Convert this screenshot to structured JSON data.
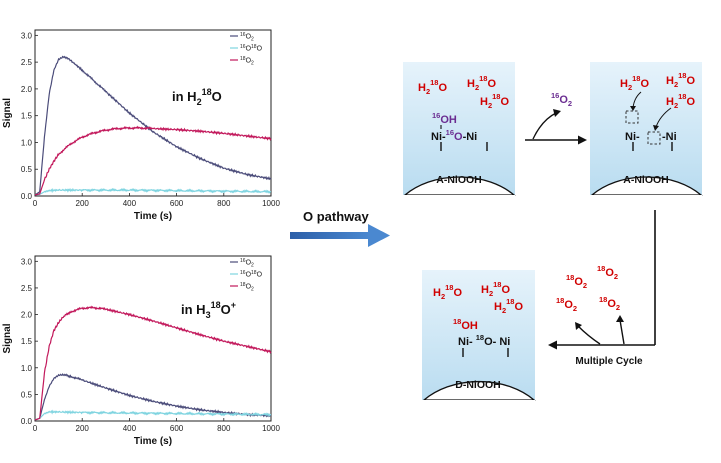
{
  "chart_data": [
    {
      "type": "line",
      "condition": {
        "prefix": "in H",
        "sub": "2",
        "sup": "18",
        "suffix": "O"
      },
      "xlabel": "Time (s)",
      "ylabel": "Signal",
      "xlim": [
        0,
        1000
      ],
      "ylim": [
        0,
        3.1
      ],
      "xticks": [
        0,
        200,
        400,
        600,
        800,
        1000
      ],
      "yticks": [
        0.0,
        0.5,
        1.0,
        1.5,
        2.0,
        2.5,
        3.0
      ],
      "ytick_labels": [
        "0.0",
        "0.5",
        "1.0",
        "1.5",
        "2.0",
        "2.5",
        "3.0"
      ],
      "series": [
        {
          "name": "16O2",
          "sup1": "16",
          "base": "O",
          "sub": "2",
          "color": "#4b4c7a",
          "x": [
            0,
            20,
            40,
            60,
            80,
            100,
            120,
            140,
            160,
            200,
            250,
            300,
            400,
            500,
            600,
            700,
            800,
            900,
            1000
          ],
          "y": [
            0.02,
            0.08,
            1.1,
            1.9,
            2.35,
            2.55,
            2.6,
            2.57,
            2.5,
            2.35,
            2.15,
            1.95,
            1.55,
            1.2,
            0.92,
            0.7,
            0.52,
            0.4,
            0.32
          ]
        },
        {
          "name": "16O18O",
          "sup1": "16",
          "base": "O",
          "sup2": "18",
          "base2": "O",
          "color": "#7fd4e0",
          "x": [
            0,
            20,
            40,
            60,
            100,
            200,
            400,
            600,
            800,
            1000
          ],
          "y": [
            0.02,
            0.03,
            0.08,
            0.1,
            0.11,
            0.11,
            0.11,
            0.1,
            0.09,
            0.08
          ]
        },
        {
          "name": "18O2",
          "sup1": "18",
          "base": "O",
          "sub": "2",
          "color": "#c2185b",
          "x": [
            0,
            20,
            40,
            60,
            80,
            100,
            150,
            200,
            250,
            300,
            350,
            400,
            450,
            500,
            600,
            700,
            800,
            900,
            1000
          ],
          "y": [
            0.02,
            0.04,
            0.3,
            0.5,
            0.65,
            0.78,
            0.97,
            1.1,
            1.18,
            1.23,
            1.26,
            1.27,
            1.27,
            1.26,
            1.24,
            1.21,
            1.17,
            1.12,
            1.07
          ]
        }
      ]
    },
    {
      "type": "line",
      "condition": {
        "prefix": "in H",
        "sub": "3",
        "sup": "18",
        "suffix": "O",
        "sup2": "+"
      },
      "xlabel": "Time (s)",
      "ylabel": "Signal",
      "xlim": [
        0,
        1000
      ],
      "ylim": [
        0,
        3.1
      ],
      "xticks": [
        0,
        200,
        400,
        600,
        800,
        1000
      ],
      "yticks": [
        0.0,
        0.5,
        1.0,
        1.5,
        2.0,
        2.5,
        3.0
      ],
      "ytick_labels": [
        "0.0",
        "0.5",
        "1.0",
        "1.5",
        "2.0",
        "2.5",
        "3.0"
      ],
      "series": [
        {
          "name": "16O2",
          "sup1": "16",
          "base": "O",
          "sub": "2",
          "color": "#4b4c7a",
          "x": [
            0,
            20,
            40,
            60,
            80,
            100,
            120,
            150,
            200,
            300,
            400,
            500,
            600,
            700,
            800,
            900,
            1000
          ],
          "y": [
            0.02,
            0.05,
            0.4,
            0.65,
            0.8,
            0.86,
            0.87,
            0.84,
            0.77,
            0.62,
            0.48,
            0.37,
            0.28,
            0.21,
            0.16,
            0.12,
            0.1
          ]
        },
        {
          "name": "16O18O",
          "sup1": "16",
          "base": "O",
          "sup2": "18",
          "base2": "O",
          "color": "#7fd4e0",
          "x": [
            0,
            20,
            40,
            60,
            100,
            200,
            400,
            600,
            800,
            1000
          ],
          "y": [
            0.02,
            0.05,
            0.14,
            0.17,
            0.17,
            0.16,
            0.15,
            0.14,
            0.13,
            0.12
          ]
        },
        {
          "name": "18O2",
          "sup1": "18",
          "base": "O",
          "sub": "2",
          "color": "#c2185b",
          "x": [
            0,
            20,
            40,
            60,
            80,
            100,
            120,
            150,
            200,
            250,
            300,
            400,
            500,
            600,
            700,
            800,
            900,
            1000
          ],
          "y": [
            0.02,
            0.05,
            0.9,
            1.4,
            1.7,
            1.85,
            1.96,
            2.05,
            2.12,
            2.13,
            2.1,
            2.0,
            1.88,
            1.75,
            1.62,
            1.5,
            1.4,
            1.3
          ]
        }
      ]
    }
  ],
  "arrow_label": "O pathway",
  "scheme": {
    "water": {
      "base1": "H",
      "sub": "2",
      "sup": "18",
      "base2": "O",
      "color": "#d00000"
    },
    "released_o2": {
      "sup": "16",
      "base": "O",
      "sub": "2",
      "color": "#6a2c91"
    },
    "new_o2": {
      "sup": "18",
      "base": "O",
      "sub": "2",
      "color": "#d00000"
    },
    "panel1": {
      "oh_group": {
        "sup": "16",
        "base": "OH",
        "color": "#6a2c91"
      },
      "surface_text": {
        "ni1": "Ni-",
        "sup": "16",
        "o": "O",
        "ni2": "-Ni"
      },
      "label": "A-NiOOH"
    },
    "panel2": {
      "surface_text": {
        "ni1": "Ni-",
        "ni2": "-Ni"
      },
      "label": "A-NiOOH"
    },
    "panel3": {
      "oh_group": {
        "sup": "18",
        "base": "OH",
        "color": "#d00000"
      },
      "surface_text": {
        "ni1": "Ni-",
        "sup": "18",
        "o": "O-",
        "ni2": "Ni"
      },
      "label": "D-NiOOH"
    },
    "cycle_label": "Multiple Cycle"
  }
}
